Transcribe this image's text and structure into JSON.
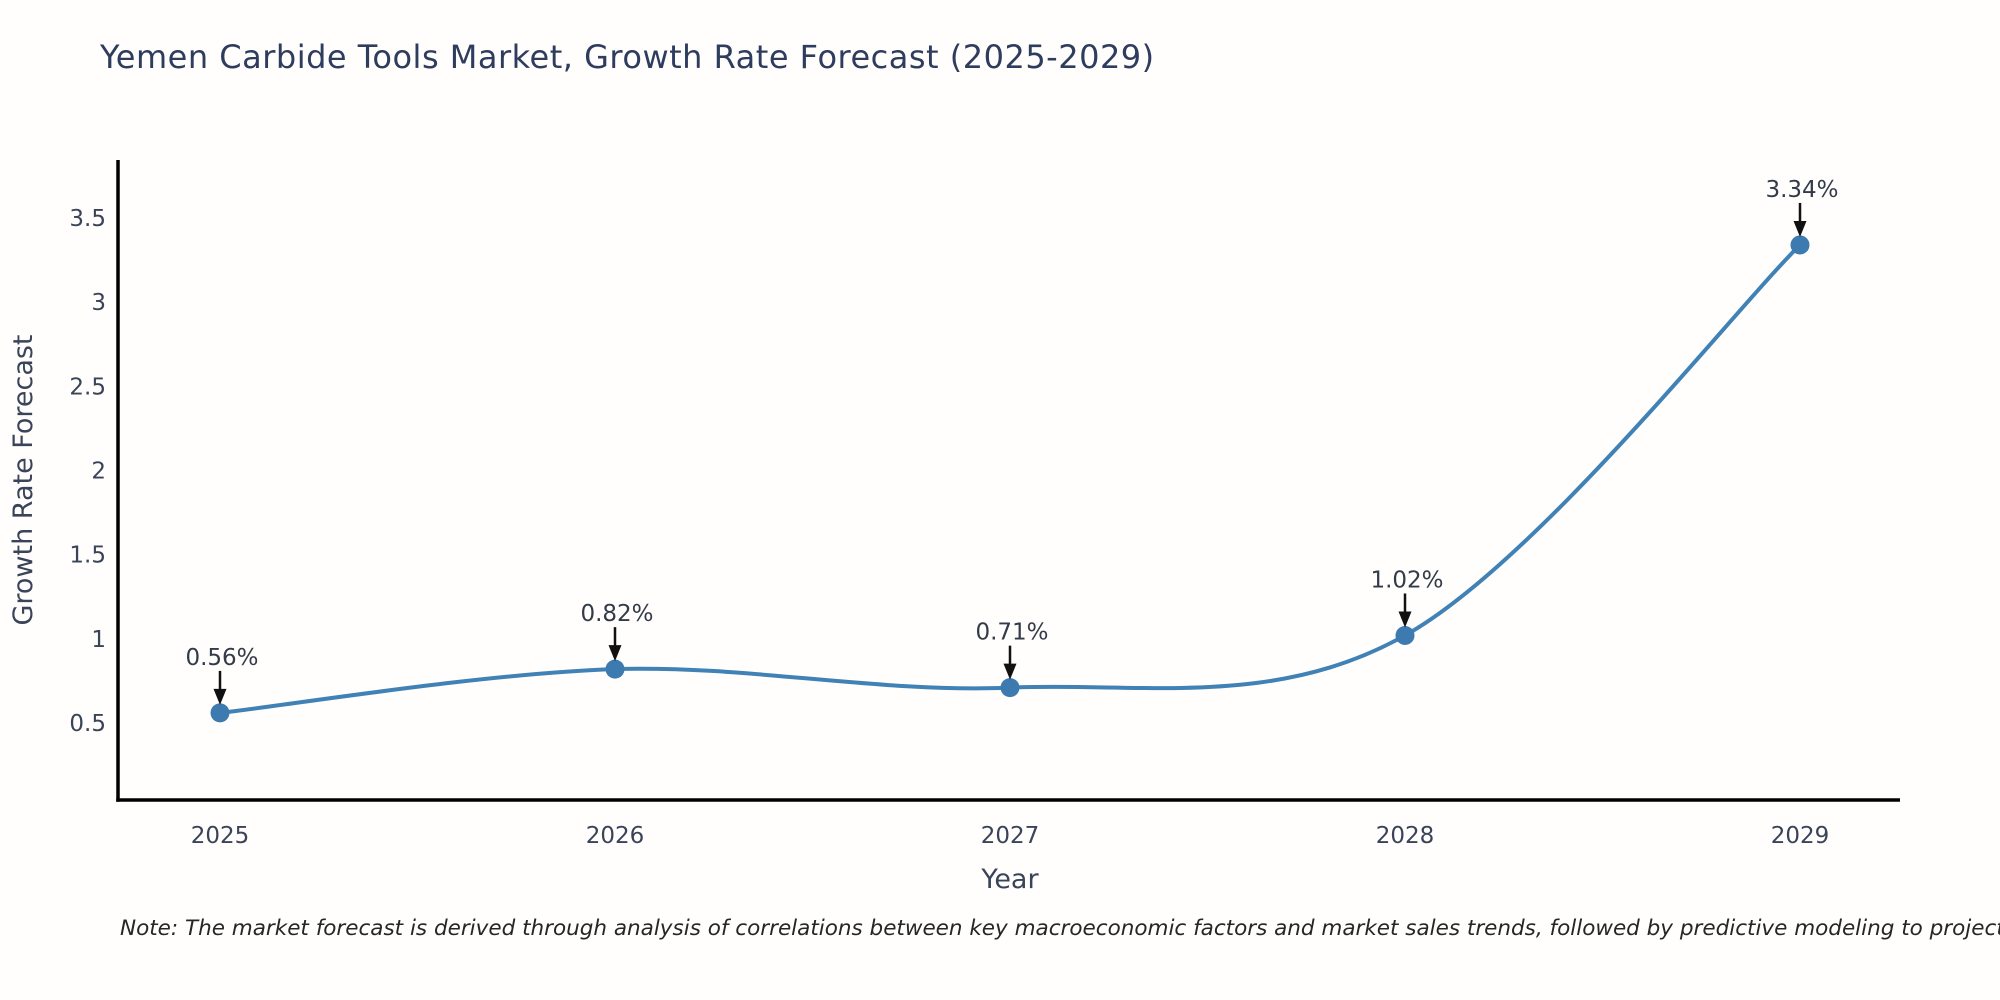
{
  "page": {
    "note": "Note: The market forecast is derived through analysis of correlations between key macroeconomic factors and market sales trends, followed by predictive modeling to project future sales"
  },
  "chart_data": {
    "type": "line",
    "title": "Yemen Carbide Tools Market, Growth Rate Forecast (2025-2029)",
    "xlabel": "Year",
    "ylabel": "Growth Rate Forecast",
    "categories": [
      "2025",
      "2026",
      "2027",
      "2028",
      "2029"
    ],
    "values": [
      0.56,
      0.82,
      0.71,
      1.02,
      3.34
    ],
    "point_labels": [
      "0.56%",
      "0.82%",
      "0.71%",
      "1.02%",
      "3.34%"
    ],
    "yticks": [
      0.5,
      1,
      1.5,
      2,
      2.5,
      3,
      3.5
    ],
    "ytick_labels": [
      "0.5",
      "1",
      "1.5",
      "2",
      "2.5",
      "3",
      "3.5"
    ],
    "ylim": [
      0.03,
      3.85
    ],
    "grid": false,
    "legend": "none",
    "smooth_spline": true,
    "colors": {
      "line": "#4182b6",
      "marker": "#3d7ab0",
      "axis": "#000000",
      "tick_text": "#3a4459",
      "title_text": "#2e3c5e",
      "annotation_text": "#333b49",
      "annotation_arrow": "#111111"
    }
  }
}
